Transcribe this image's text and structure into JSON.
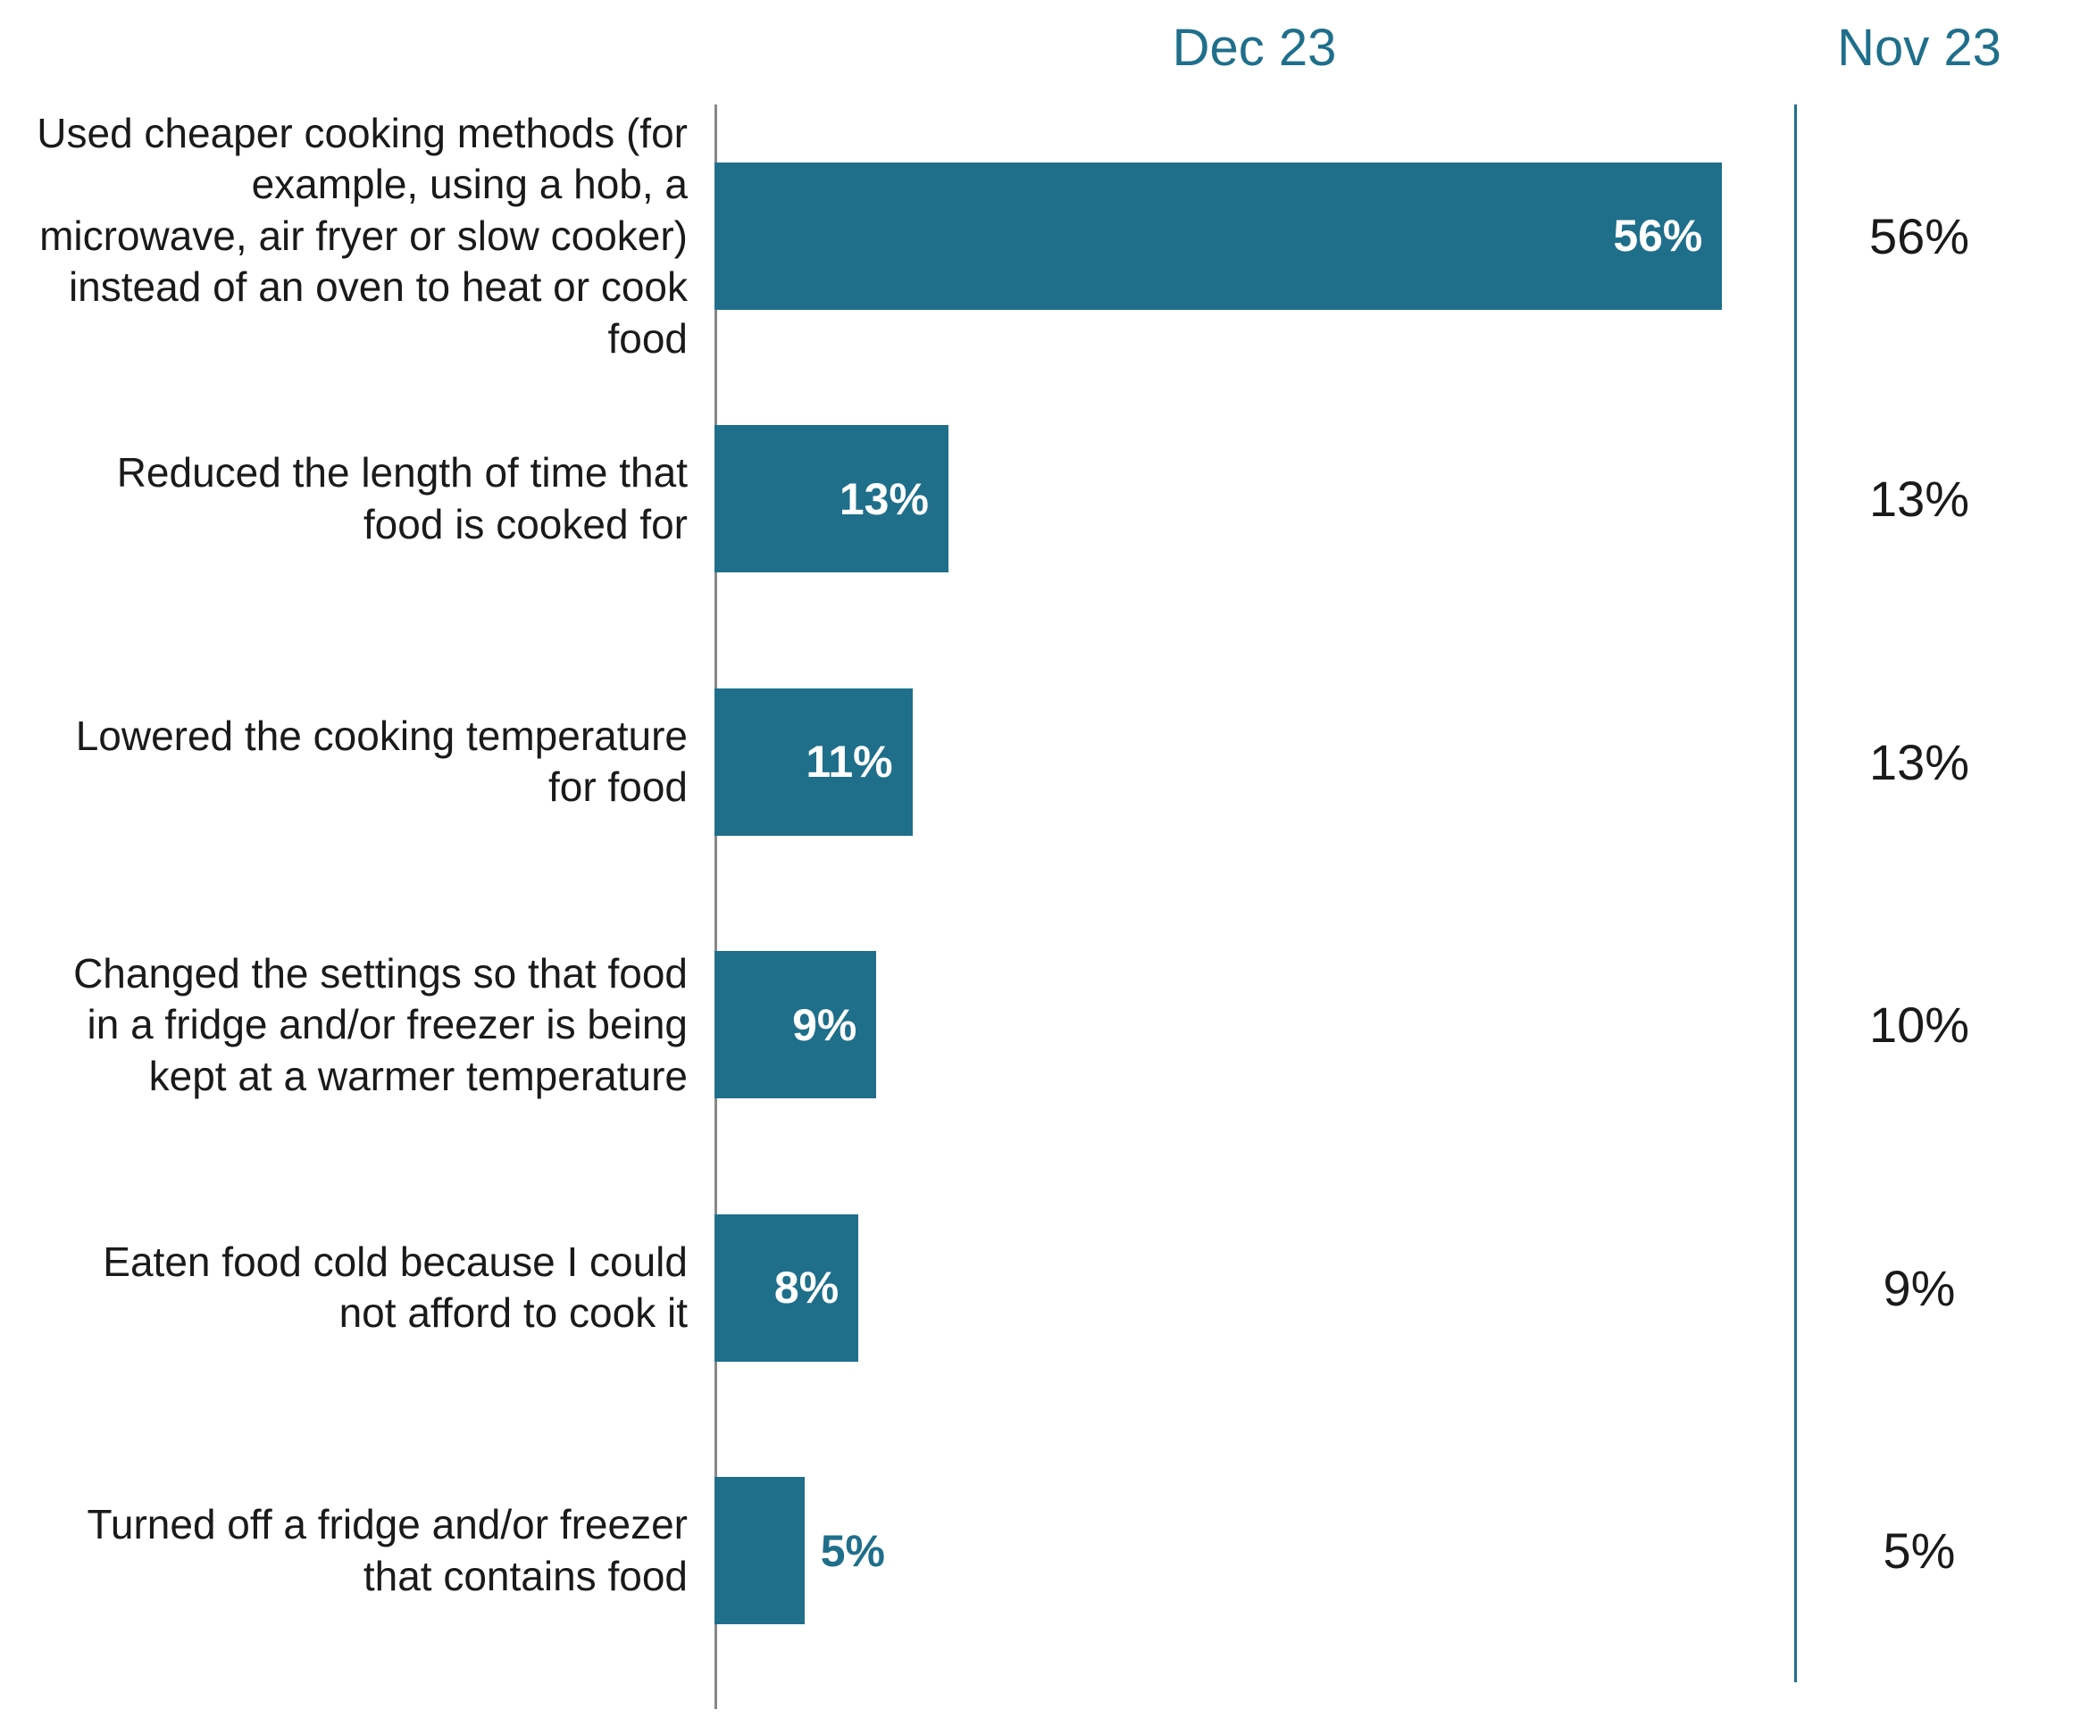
{
  "chart": {
    "type": "bar",
    "orientation": "horizontal",
    "headers": {
      "dec": "Dec 23",
      "nov": "Nov 23"
    },
    "header_color": "#1f6f8b",
    "header_fontsize": 58,
    "label_fontsize": 46,
    "label_color": "#1a1a1a",
    "bar_color": "#1f6f8b",
    "bar_label_color": "#ffffff",
    "bar_label_first_color": "#ffffff",
    "bar_label_fontsize": 50,
    "nov_fontsize": 56,
    "nov_color": "#1a1a1a",
    "axis_color": "#888888",
    "divider_color": "#1f6f8b",
    "background_color": "#ffffff",
    "max_value": 60,
    "label_col_width": 760,
    "nov_col_width": 280,
    "bar_height_pct": 56,
    "rows": [
      {
        "label": "Used cheaper cooking methods (for example, using a hob, a microwave, air fryer or slow cooker) instead of an oven to heat or cook food",
        "dec_value": 56,
        "dec_label": "56%",
        "nov_label": "56%",
        "label_inside": true
      },
      {
        "label": "Reduced the length of time that food is cooked for",
        "dec_value": 13,
        "dec_label": "13%",
        "nov_label": "13%",
        "label_inside": true
      },
      {
        "label": "Lowered the cooking temperature for food",
        "dec_value": 11,
        "dec_label": "11%",
        "nov_label": "13%",
        "label_inside": true
      },
      {
        "label": "Changed the settings so that food in a fridge and/or freezer is being kept at a warmer temperature",
        "dec_value": 9,
        "dec_label": "9%",
        "nov_label": "10%",
        "label_inside": true
      },
      {
        "label": "Eaten food cold because I could not afford to cook it",
        "dec_value": 8,
        "dec_label": "8%",
        "nov_label": "9%",
        "label_inside": true
      },
      {
        "label": "Turned off a fridge and/or freezer that contains food",
        "dec_value": 5,
        "dec_label": "5%",
        "nov_label": "5%",
        "label_inside": false
      }
    ]
  }
}
